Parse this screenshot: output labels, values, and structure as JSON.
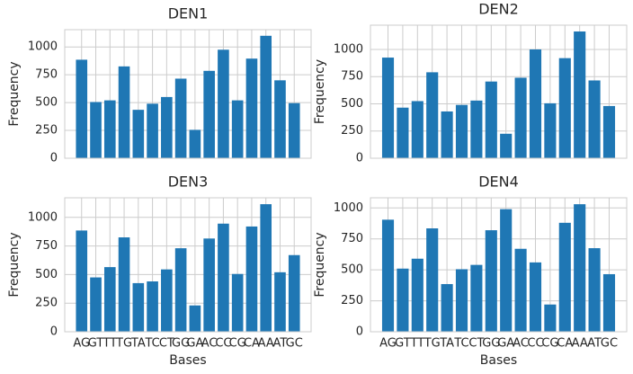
{
  "chart_data": [
    {
      "type": "bar",
      "title": "DEN1",
      "ylabel": "Frequency",
      "color": "#1f77b4",
      "grid": true,
      "values": [
        885,
        505,
        520,
        825,
        435,
        490,
        550,
        715,
        255,
        785,
        975,
        520,
        895,
        1100,
        700,
        495
      ],
      "ylim": [
        0,
        1155
      ],
      "yticks": [
        0,
        250,
        500,
        750,
        1000
      ]
    },
    {
      "type": "bar",
      "title": "DEN2",
      "ylabel": "Frequency",
      "color": "#1f77b4",
      "grid": true,
      "values": [
        925,
        465,
        525,
        790,
        430,
        490,
        530,
        705,
        225,
        740,
        1000,
        505,
        920,
        1165,
        715,
        480
      ],
      "ylim": [
        0,
        1223
      ],
      "yticks": [
        0,
        250,
        500,
        750,
        1000
      ]
    },
    {
      "type": "bar",
      "title": "DEN3",
      "xlabel": "Bases",
      "ylabel": "Frequency",
      "color": "#1f77b4",
      "grid": true,
      "categories": [
        "AG",
        "GT",
        "TT",
        "TG",
        "TA",
        "TC",
        "CT",
        "GG",
        "GA",
        "AC",
        "CC",
        "CG",
        "CA",
        "AA",
        "AT",
        "GC"
      ],
      "values": [
        885,
        475,
        565,
        825,
        425,
        440,
        545,
        730,
        230,
        815,
        945,
        505,
        920,
        1115,
        520,
        670
      ],
      "ylim": [
        0,
        1171
      ],
      "yticks": [
        0,
        250,
        500,
        750,
        1000
      ]
    },
    {
      "type": "bar",
      "title": "DEN4",
      "xlabel": "Bases",
      "ylabel": "Frequency",
      "color": "#1f77b4",
      "grid": true,
      "categories": [
        "AG",
        "GT",
        "TT",
        "TG",
        "TA",
        "TC",
        "CT",
        "GG",
        "GA",
        "AC",
        "CC",
        "CG",
        "CA",
        "AA",
        "AT",
        "GC"
      ],
      "values": [
        905,
        510,
        590,
        835,
        385,
        505,
        540,
        820,
        990,
        670,
        560,
        220,
        880,
        1030,
        675,
        465
      ],
      "ylim": [
        0,
        1082
      ],
      "yticks": [
        0,
        250,
        500,
        750,
        1000
      ]
    }
  ]
}
